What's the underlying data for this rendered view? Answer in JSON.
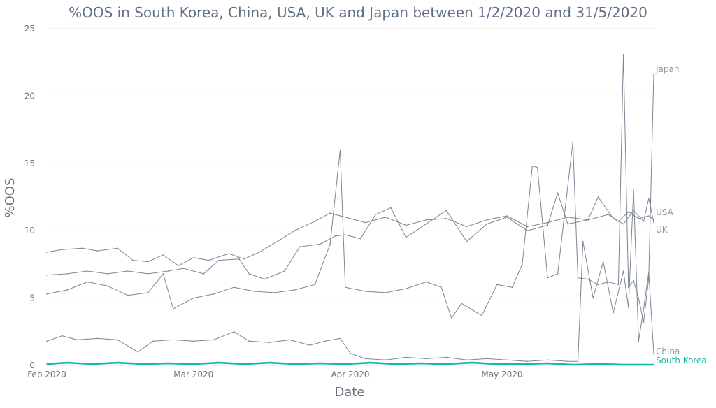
{
  "chart_data": {
    "type": "line",
    "title": "%OOS in South Korea, China, USA, UK and Japan between 1/2/2020 and 31/5/2020",
    "xlabel": "Date",
    "ylabel": "%OOS",
    "ylim": [
      0,
      25
    ],
    "xlim": [
      "2020-02-01",
      "2020-05-31"
    ],
    "yticks": [
      0,
      5,
      10,
      15,
      20,
      25
    ],
    "xticks": [
      {
        "date": "2020-02-01",
        "label": "Feb 2020"
      },
      {
        "date": "2020-03-01",
        "label": "Mar 2020"
      },
      {
        "date": "2020-04-01",
        "label": "Apr 2020"
      },
      {
        "date": "2020-05-01",
        "label": "May 2020"
      }
    ],
    "grid": "horizontal",
    "legend": "end-of-line labels",
    "colors": {
      "grey": "#7c8594",
      "highlight": "#14b8a6"
    },
    "series": [
      {
        "name": "Japan",
        "color": "#7c8594",
        "highlight": false,
        "points": [
          [
            "2020-02-01",
            5.3
          ],
          [
            "2020-02-05",
            5.6
          ],
          [
            "2020-02-09",
            6.2
          ],
          [
            "2020-02-13",
            5.9
          ],
          [
            "2020-02-17",
            5.2
          ],
          [
            "2020-02-21",
            5.4
          ],
          [
            "2020-02-24",
            6.8
          ],
          [
            "2020-02-26",
            4.2
          ],
          [
            "2020-03-01",
            5.0
          ],
          [
            "2020-03-05",
            5.3
          ],
          [
            "2020-03-09",
            5.8
          ],
          [
            "2020-03-13",
            5.5
          ],
          [
            "2020-03-17",
            5.4
          ],
          [
            "2020-03-21",
            5.6
          ],
          [
            "2020-03-25",
            6.0
          ],
          [
            "2020-03-28",
            9.0
          ],
          [
            "2020-03-30",
            16.0
          ],
          [
            "2020-03-31",
            5.8
          ],
          [
            "2020-04-04",
            5.5
          ],
          [
            "2020-04-08",
            5.4
          ],
          [
            "2020-04-12",
            5.7
          ],
          [
            "2020-04-16",
            6.2
          ],
          [
            "2020-04-19",
            5.8
          ],
          [
            "2020-04-21",
            3.5
          ],
          [
            "2020-04-23",
            4.6
          ],
          [
            "2020-04-27",
            3.7
          ],
          [
            "2020-04-30",
            6.0
          ],
          [
            "2020-05-03",
            5.8
          ],
          [
            "2020-05-05",
            7.5
          ],
          [
            "2020-05-07",
            14.8
          ],
          [
            "2020-05-08",
            14.7
          ],
          [
            "2020-05-10",
            6.5
          ],
          [
            "2020-05-12",
            6.8
          ],
          [
            "2020-05-15",
            16.6
          ],
          [
            "2020-05-16",
            6.5
          ],
          [
            "2020-05-18",
            6.4
          ],
          [
            "2020-05-20",
            6.0
          ],
          [
            "2020-05-22",
            6.2
          ],
          [
            "2020-05-24",
            6.0
          ],
          [
            "2020-05-25",
            23.1
          ],
          [
            "2020-05-26",
            5.8
          ],
          [
            "2020-05-27",
            6.3
          ],
          [
            "2020-05-28",
            5.0
          ],
          [
            "2020-05-29",
            3.2
          ],
          [
            "2020-05-30",
            6.5
          ],
          [
            "2020-05-31",
            21.6
          ]
        ]
      },
      {
        "name": "USA",
        "color": "#7c8594",
        "highlight": false,
        "points": [
          [
            "2020-02-01",
            8.4
          ],
          [
            "2020-02-04",
            8.6
          ],
          [
            "2020-02-08",
            8.7
          ],
          [
            "2020-02-11",
            8.5
          ],
          [
            "2020-02-15",
            8.7
          ],
          [
            "2020-02-18",
            7.8
          ],
          [
            "2020-02-21",
            7.7
          ],
          [
            "2020-02-24",
            8.2
          ],
          [
            "2020-02-27",
            7.4
          ],
          [
            "2020-03-01",
            8.0
          ],
          [
            "2020-03-04",
            7.8
          ],
          [
            "2020-03-08",
            8.3
          ],
          [
            "2020-03-11",
            7.9
          ],
          [
            "2020-03-14",
            8.4
          ],
          [
            "2020-03-18",
            9.3
          ],
          [
            "2020-03-21",
            10.0
          ],
          [
            "2020-03-25",
            10.7
          ],
          [
            "2020-03-28",
            11.3
          ],
          [
            "2020-03-31",
            11.0
          ],
          [
            "2020-04-04",
            10.6
          ],
          [
            "2020-04-08",
            11.0
          ],
          [
            "2020-04-12",
            10.4
          ],
          [
            "2020-04-16",
            10.8
          ],
          [
            "2020-04-20",
            10.9
          ],
          [
            "2020-04-24",
            10.3
          ],
          [
            "2020-04-28",
            10.8
          ],
          [
            "2020-05-02",
            11.1
          ],
          [
            "2020-05-06",
            10.3
          ],
          [
            "2020-05-10",
            10.6
          ],
          [
            "2020-05-14",
            11.0
          ],
          [
            "2020-05-18",
            10.8
          ],
          [
            "2020-05-22",
            11.2
          ],
          [
            "2020-05-24",
            10.7
          ],
          [
            "2020-05-26",
            11.4
          ],
          [
            "2020-05-28",
            10.9
          ],
          [
            "2020-05-30",
            11.1
          ],
          [
            "2020-05-31",
            10.8
          ]
        ]
      },
      {
        "name": "UK",
        "color": "#7c8594",
        "highlight": false,
        "points": [
          [
            "2020-02-01",
            6.7
          ],
          [
            "2020-02-05",
            6.8
          ],
          [
            "2020-02-09",
            7.0
          ],
          [
            "2020-02-13",
            6.8
          ],
          [
            "2020-02-17",
            7.0
          ],
          [
            "2020-02-21",
            6.8
          ],
          [
            "2020-02-25",
            7.0
          ],
          [
            "2020-02-28",
            7.2
          ],
          [
            "2020-03-03",
            6.8
          ],
          [
            "2020-03-06",
            7.8
          ],
          [
            "2020-03-10",
            7.9
          ],
          [
            "2020-03-12",
            6.8
          ],
          [
            "2020-03-15",
            6.4
          ],
          [
            "2020-03-19",
            7.0
          ],
          [
            "2020-03-22",
            8.8
          ],
          [
            "2020-03-26",
            9.0
          ],
          [
            "2020-03-29",
            9.6
          ],
          [
            "2020-03-31",
            9.7
          ],
          [
            "2020-04-03",
            9.4
          ],
          [
            "2020-04-06",
            11.2
          ],
          [
            "2020-04-09",
            11.7
          ],
          [
            "2020-04-12",
            9.5
          ],
          [
            "2020-04-16",
            10.5
          ],
          [
            "2020-04-20",
            11.5
          ],
          [
            "2020-04-24",
            9.2
          ],
          [
            "2020-04-28",
            10.5
          ],
          [
            "2020-05-02",
            11.0
          ],
          [
            "2020-05-06",
            10.0
          ],
          [
            "2020-05-10",
            10.4
          ],
          [
            "2020-05-12",
            12.8
          ],
          [
            "2020-05-14",
            10.5
          ],
          [
            "2020-05-18",
            10.8
          ],
          [
            "2020-05-20",
            12.5
          ],
          [
            "2020-05-23",
            10.9
          ],
          [
            "2020-05-25",
            10.5
          ],
          [
            "2020-05-27",
            11.5
          ],
          [
            "2020-05-29",
            10.7
          ],
          [
            "2020-05-30",
            12.4
          ],
          [
            "2020-05-31",
            10.6
          ]
        ]
      },
      {
        "name": "China",
        "color": "#7c8594",
        "highlight": false,
        "points": [
          [
            "2020-02-01",
            1.8
          ],
          [
            "2020-02-04",
            2.2
          ],
          [
            "2020-02-07",
            1.9
          ],
          [
            "2020-02-11",
            2.0
          ],
          [
            "2020-02-15",
            1.9
          ],
          [
            "2020-02-19",
            1.0
          ],
          [
            "2020-02-22",
            1.8
          ],
          [
            "2020-02-26",
            1.9
          ],
          [
            "2020-03-01",
            1.8
          ],
          [
            "2020-03-05",
            1.9
          ],
          [
            "2020-03-09",
            2.5
          ],
          [
            "2020-03-12",
            1.8
          ],
          [
            "2020-03-16",
            1.7
          ],
          [
            "2020-03-20",
            1.9
          ],
          [
            "2020-03-24",
            1.5
          ],
          [
            "2020-03-27",
            1.8
          ],
          [
            "2020-03-30",
            2.0
          ],
          [
            "2020-04-01",
            0.9
          ],
          [
            "2020-04-04",
            0.5
          ],
          [
            "2020-04-08",
            0.4
          ],
          [
            "2020-04-12",
            0.6
          ],
          [
            "2020-04-16",
            0.5
          ],
          [
            "2020-04-20",
            0.6
          ],
          [
            "2020-04-24",
            0.4
          ],
          [
            "2020-04-28",
            0.5
          ],
          [
            "2020-05-02",
            0.4
          ],
          [
            "2020-05-06",
            0.3
          ],
          [
            "2020-05-10",
            0.4
          ],
          [
            "2020-05-14",
            0.3
          ],
          [
            "2020-05-16",
            0.3
          ],
          [
            "2020-05-17",
            9.2
          ],
          [
            "2020-05-19",
            5.0
          ],
          [
            "2020-05-21",
            7.7
          ],
          [
            "2020-05-23",
            3.9
          ],
          [
            "2020-05-25",
            7.0
          ],
          [
            "2020-05-26",
            4.3
          ],
          [
            "2020-05-27",
            13.0
          ],
          [
            "2020-05-28",
            1.8
          ],
          [
            "2020-05-29",
            4.2
          ],
          [
            "2020-05-30",
            6.9
          ],
          [
            "2020-05-31",
            0.9
          ]
        ]
      },
      {
        "name": "South Korea",
        "color": "#14b8a6",
        "highlight": true,
        "points": [
          [
            "2020-02-01",
            0.1
          ],
          [
            "2020-02-05",
            0.2
          ],
          [
            "2020-02-10",
            0.1
          ],
          [
            "2020-02-15",
            0.2
          ],
          [
            "2020-02-20",
            0.1
          ],
          [
            "2020-02-25",
            0.15
          ],
          [
            "2020-03-01",
            0.1
          ],
          [
            "2020-03-06",
            0.2
          ],
          [
            "2020-03-11",
            0.1
          ],
          [
            "2020-03-16",
            0.2
          ],
          [
            "2020-03-21",
            0.1
          ],
          [
            "2020-03-26",
            0.15
          ],
          [
            "2020-03-31",
            0.1
          ],
          [
            "2020-04-05",
            0.2
          ],
          [
            "2020-04-10",
            0.1
          ],
          [
            "2020-04-15",
            0.15
          ],
          [
            "2020-04-20",
            0.1
          ],
          [
            "2020-04-25",
            0.2
          ],
          [
            "2020-04-30",
            0.1
          ],
          [
            "2020-05-05",
            0.1
          ],
          [
            "2020-05-10",
            0.15
          ],
          [
            "2020-05-15",
            0.05
          ],
          [
            "2020-05-20",
            0.1
          ],
          [
            "2020-05-25",
            0.05
          ],
          [
            "2020-05-31",
            0.05
          ]
        ]
      }
    ]
  }
}
